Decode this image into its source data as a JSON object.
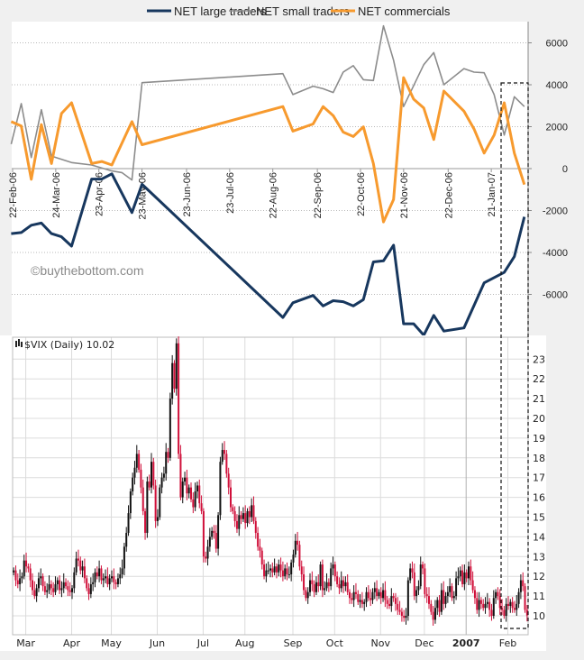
{
  "chart_data": [
    {
      "type": "line",
      "legend_position": "top",
      "y_axis_side": "right",
      "ylim": [
        -8000,
        7000
      ],
      "yticks": [
        -6000,
        -4000,
        -2000,
        0,
        2000,
        4000,
        6000
      ],
      "xticks": [
        {
          "date": "2006-02-22",
          "label": "22-Feb-06"
        },
        {
          "date": "2006-03-24",
          "label": "24-Mar-06"
        },
        {
          "date": "2006-04-23",
          "label": "23-Apr-06"
        },
        {
          "date": "2006-05-23",
          "label": "23-May-06"
        },
        {
          "date": "2006-06-23",
          "label": "23-Jun-06"
        },
        {
          "date": "2006-07-23",
          "label": "23-Jul-06"
        },
        {
          "date": "2006-08-22",
          "label": "22-Aug-06"
        },
        {
          "date": "2006-09-22",
          "label": "22-Sep-06"
        },
        {
          "date": "2006-10-22",
          "label": "22-Oct-06"
        },
        {
          "date": "2006-11-21",
          "label": "21-Nov-06"
        },
        {
          "date": "2006-12-22",
          "label": "22-Dec-06"
        },
        {
          "date": "2007-01-21",
          "label": "21-Jan-07"
        }
      ],
      "grid": "horizontal dotted",
      "watermark": "©buythebottom.com",
      "series": [
        {
          "name": "NET large traders",
          "color": "#17375e",
          "points": [
            [
              "2006-02-21",
              -3100
            ],
            [
              "2006-02-28",
              -3050
            ],
            [
              "2006-03-07",
              -2700
            ],
            [
              "2006-03-14",
              -2600
            ],
            [
              "2006-03-21",
              -3100
            ],
            [
              "2006-03-28",
              -3250
            ],
            [
              "2006-04-04",
              -3700
            ],
            [
              "2006-04-18",
              -500
            ],
            [
              "2006-04-25",
              -500
            ],
            [
              "2006-05-02",
              -250
            ],
            [
              "2006-05-16",
              -2100
            ],
            [
              "2006-05-23",
              -750
            ],
            [
              "2006-08-29",
              -7100
            ],
            [
              "2006-09-05",
              -6400
            ],
            [
              "2006-09-19",
              -6050
            ],
            [
              "2006-09-26",
              -6550
            ],
            [
              "2006-10-03",
              -6300
            ],
            [
              "2006-10-10",
              -6350
            ],
            [
              "2006-10-17",
              -6550
            ],
            [
              "2006-10-24",
              -6250
            ],
            [
              "2006-10-31",
              -4450
            ],
            [
              "2006-11-07",
              -4400
            ],
            [
              "2006-11-14",
              -3650
            ],
            [
              "2006-11-21",
              -7400
            ],
            [
              "2006-11-28",
              -7400
            ],
            [
              "2006-12-05",
              -7950
            ],
            [
              "2006-12-12",
              -7000
            ],
            [
              "2006-12-19",
              -7750
            ],
            [
              "2007-01-02",
              -7600
            ],
            [
              "2007-01-16",
              -5450
            ],
            [
              "2007-01-30",
              -4950
            ],
            [
              "2007-02-06",
              -4200
            ],
            [
              "2007-02-13",
              -2300
            ]
          ]
        },
        {
          "name": "NET small traders",
          "color": "#8c8c8c",
          "points": [
            [
              "2006-02-21",
              1170
            ],
            [
              "2006-02-28",
              3100
            ],
            [
              "2006-03-07",
              530
            ],
            [
              "2006-03-14",
              2810
            ],
            [
              "2006-03-21",
              600
            ],
            [
              "2006-04-04",
              290
            ],
            [
              "2006-04-18",
              170
            ],
            [
              "2006-05-02",
              -110
            ],
            [
              "2006-05-09",
              -190
            ],
            [
              "2006-05-16",
              -540
            ],
            [
              "2006-05-23",
              4100
            ],
            [
              "2006-08-29",
              4530
            ],
            [
              "2006-09-05",
              3530
            ],
            [
              "2006-09-19",
              3930
            ],
            [
              "2006-09-26",
              3810
            ],
            [
              "2006-10-03",
              3630
            ],
            [
              "2006-10-10",
              4600
            ],
            [
              "2006-10-17",
              4910
            ],
            [
              "2006-10-24",
              4240
            ],
            [
              "2006-10-31",
              4200
            ],
            [
              "2006-11-07",
              6810
            ],
            [
              "2006-11-14",
              5170
            ],
            [
              "2006-11-21",
              2960
            ],
            [
              "2006-12-05",
              4960
            ],
            [
              "2006-12-12",
              5530
            ],
            [
              "2006-12-19",
              4000
            ],
            [
              "2007-01-02",
              4770
            ],
            [
              "2007-01-09",
              4600
            ],
            [
              "2007-01-16",
              4570
            ],
            [
              "2007-01-23",
              3530
            ],
            [
              "2007-01-30",
              1600
            ],
            [
              "2007-02-06",
              3430
            ],
            [
              "2007-02-13",
              2960
            ]
          ]
        },
        {
          "name": "NET commercials",
          "color": "#f79a2e",
          "points": [
            [
              "2006-02-21",
              2240
            ],
            [
              "2006-02-28",
              2030
            ],
            [
              "2006-03-07",
              -510
            ],
            [
              "2006-03-14",
              2100
            ],
            [
              "2006-03-21",
              240
            ],
            [
              "2006-03-28",
              2630
            ],
            [
              "2006-04-04",
              3140
            ],
            [
              "2006-04-18",
              240
            ],
            [
              "2006-04-25",
              340
            ],
            [
              "2006-05-02",
              170
            ],
            [
              "2006-05-16",
              2240
            ],
            [
              "2006-05-23",
              1140
            ],
            [
              "2006-08-29",
              2960
            ],
            [
              "2006-09-05",
              1790
            ],
            [
              "2006-09-19",
              2130
            ],
            [
              "2006-09-26",
              2960
            ],
            [
              "2006-10-03",
              2530
            ],
            [
              "2006-10-10",
              1740
            ],
            [
              "2006-10-17",
              1530
            ],
            [
              "2006-10-24",
              1990
            ],
            [
              "2006-10-31",
              240
            ],
            [
              "2006-11-07",
              -2540
            ],
            [
              "2006-11-14",
              -1470
            ],
            [
              "2006-11-21",
              4340
            ],
            [
              "2006-11-28",
              3310
            ],
            [
              "2006-12-05",
              2890
            ],
            [
              "2006-12-12",
              1390
            ],
            [
              "2006-12-19",
              3700
            ],
            [
              "2007-01-02",
              2740
            ],
            [
              "2007-01-09",
              1890
            ],
            [
              "2007-01-16",
              740
            ],
            [
              "2007-01-23",
              1600
            ],
            [
              "2007-01-30",
              3140
            ],
            [
              "2007-02-06",
              740
            ],
            [
              "2007-02-13",
              -760
            ]
          ]
        }
      ]
    },
    {
      "type": "candlestick",
      "title": "$VIX (Daily) 10.02",
      "y_axis_side": "right",
      "ylim": [
        9,
        24
      ],
      "yticks": [
        10,
        11,
        12,
        13,
        14,
        15,
        16,
        17,
        18,
        19,
        20,
        21,
        22,
        23
      ],
      "up_color": "#111111",
      "down_color": "#d0103a",
      "grid": "both",
      "months": [
        {
          "label": "",
          "closes": [
            12.3,
            11.8,
            11.6,
            11.9,
            12.0
          ]
        },
        {
          "label": "Mar",
          "closes": [
            12.8,
            12.5,
            12.4,
            11.8,
            11.3,
            11.0,
            11.4,
            11.9,
            12.0,
            11.5,
            11.2,
            11.3,
            11.6,
            11.4,
            11.2,
            11.6,
            11.8,
            11.3,
            11.4,
            11.7,
            11.5,
            11.3
          ]
        },
        {
          "label": "Apr",
          "closes": [
            11.2,
            11.4,
            12.2,
            12.9,
            12.8,
            12.3,
            12.5,
            11.9,
            11.4,
            11.1,
            11.6,
            11.7,
            12.2,
            12.0,
            12.4,
            11.8,
            11.9,
            12.0,
            11.6
          ]
        },
        {
          "label": "May",
          "closes": [
            11.9,
            12.0,
            11.7,
            11.6,
            11.9,
            12.1,
            12.4,
            13.5,
            14.2,
            15.2,
            16.3,
            17.0,
            17.5,
            18.2,
            17.4,
            16.5,
            15.3,
            14.2,
            16.8,
            16.5,
            17.8,
            16.6
          ]
        },
        {
          "label": "Jun",
          "closes": [
            14.8,
            15.0,
            16.5,
            17.0,
            17.2,
            18.3,
            18.0,
            21.0,
            22.8,
            21.5,
            23.8,
            18.2,
            16.0,
            16.8,
            17.0,
            16.2,
            16.5,
            15.9,
            15.5,
            16.3,
            16.6,
            15.7
          ]
        },
        {
          "label": "Jul",
          "closes": [
            15.3,
            13.0,
            12.9,
            13.5,
            14.0,
            14.3,
            14.2,
            13.4,
            15.1,
            17.8,
            18.4,
            18.2,
            17.2,
            16.5,
            15.5,
            15.3,
            14.8,
            14.4,
            15.1,
            14.9
          ]
        },
        {
          "label": "Aug",
          "closes": [
            15.2,
            14.7,
            15.3,
            15.0,
            15.6,
            14.8,
            14.2,
            13.5,
            13.3,
            12.6,
            12.0,
            12.3,
            12.3,
            12.4,
            12.2,
            12.5,
            12.2,
            12.6,
            12.3,
            12.0,
            12.4,
            12.1,
            12.1
          ]
        },
        {
          "label": "Sep",
          "closes": [
            12.7,
            13.1,
            13.8,
            13.6,
            12.5,
            12.1,
            11.3,
            10.9,
            11.2,
            11.8,
            11.6,
            11.2,
            11.7,
            11.5,
            12.6,
            11.3,
            11.4,
            11.7,
            11.5,
            12.4
          ]
        },
        {
          "label": "Oct",
          "closes": [
            12.6,
            12.0,
            11.6,
            11.4,
            11.8,
            11.5,
            11.7,
            11.2,
            10.9,
            10.8,
            11.2,
            11.1,
            10.7,
            10.8,
            10.6,
            10.7,
            11.2,
            10.9,
            10.8,
            11.2,
            11.4,
            11.0
          ]
        },
        {
          "label": "Nov",
          "closes": [
            11.2,
            10.9,
            11.3,
            10.8,
            10.6,
            10.5,
            11.0,
            10.9,
            10.6,
            10.3,
            10.2,
            10.0,
            9.9,
            10.0,
            11.8,
            12.4,
            12.2,
            11.0,
            11.3,
            11.5,
            12.6
          ]
        },
        {
          "label": "Dec",
          "closes": [
            12.4,
            11.1,
            11.0,
            10.6,
            10.2,
            9.8,
            10.4,
            10.8,
            10.2,
            11.3,
            10.6,
            11.0,
            11.2,
            11.5,
            10.9,
            11.0,
            11.9,
            12.0,
            12.3,
            11.6
          ]
        },
        {
          "label": "2007",
          "closes": [
            12.2,
            11.9,
            12.5,
            11.8,
            11.3,
            10.9,
            10.3,
            10.8,
            10.6,
            10.4,
            10.6,
            10.7,
            10.3,
            10.0,
            10.9,
            11.2,
            11.0,
            10.4,
            10.3,
            10.0
          ]
        },
        {
          "label": "Feb",
          "closes": [
            10.6,
            10.5,
            10.7,
            10.4,
            10.3,
            10.6,
            11.2,
            11.8,
            11.5,
            10.3,
            10.02
          ]
        }
      ]
    }
  ]
}
